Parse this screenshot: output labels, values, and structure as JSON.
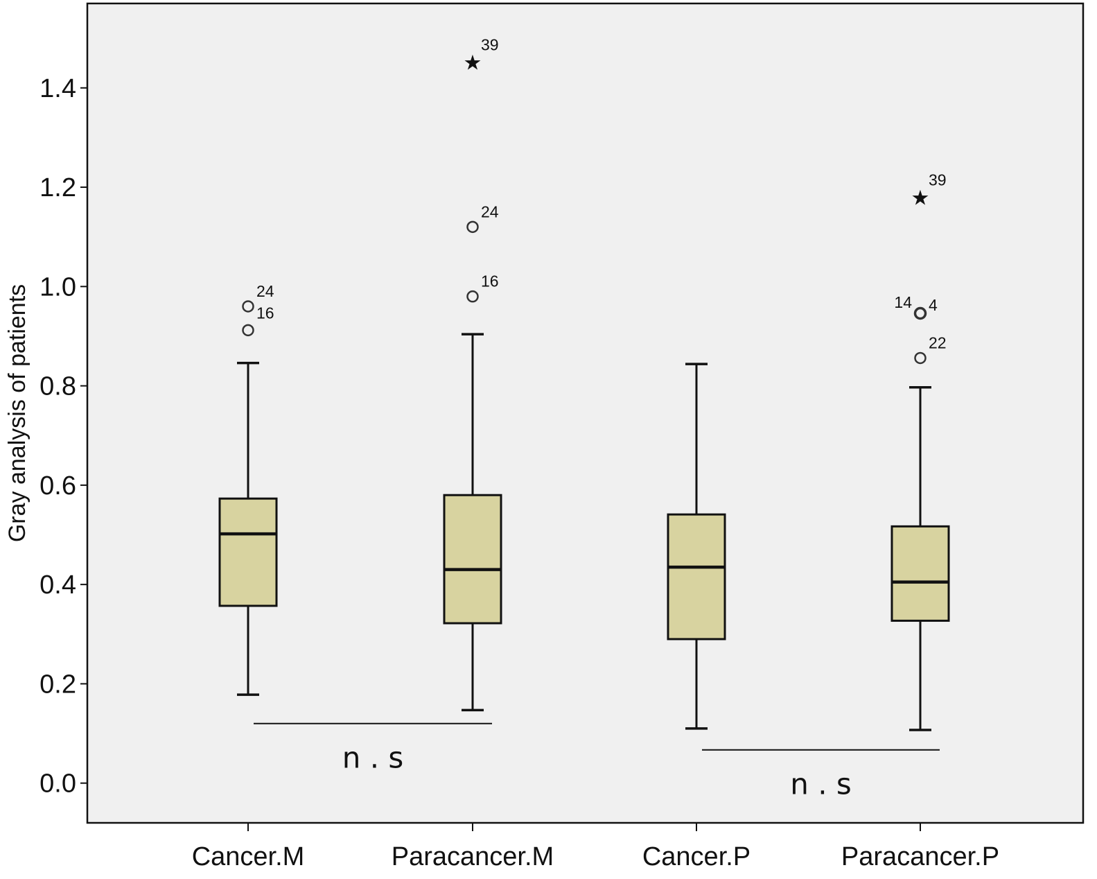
{
  "colors": {
    "plot_background": "#f0f0f0",
    "box_fill": "#d8d3a0",
    "stroke": "#111111",
    "outlier_stroke": "#333333"
  },
  "chart_data": {
    "type": "boxplot",
    "title": "",
    "xlabel": "",
    "ylabel": "Gray analysis of patients",
    "ylim": [
      -0.08,
      1.57
    ],
    "yticks": [
      0.0,
      0.2,
      0.4,
      0.6,
      0.8,
      1.0,
      1.2,
      1.4
    ],
    "ytick_labels": [
      "0.0",
      "0.2",
      "0.4",
      "0.6",
      "0.8",
      "1.0",
      "1.2",
      "1.4"
    ],
    "grid": false,
    "categories": [
      "Cancer.M",
      "Paracancer.M",
      "Cancer.P",
      "Paracancer.P"
    ],
    "boxes": [
      {
        "category": "Cancer.M",
        "min": 0.178,
        "q1": 0.357,
        "median": 0.502,
        "q3": 0.573,
        "max": 0.846,
        "outliers": [
          {
            "value": 0.96,
            "marker": "circle",
            "label": "24"
          },
          {
            "value": 0.912,
            "marker": "circle",
            "label": "16"
          }
        ]
      },
      {
        "category": "Paracancer.M",
        "min": 0.147,
        "q1": 0.322,
        "median": 0.43,
        "q3": 0.58,
        "max": 0.904,
        "outliers": [
          {
            "value": 1.456,
            "marker": "star",
            "label": "39"
          },
          {
            "value": 1.12,
            "marker": "circle",
            "label": "24"
          },
          {
            "value": 0.98,
            "marker": "circle",
            "label": "16"
          }
        ]
      },
      {
        "category": "Cancer.P",
        "min": 0.11,
        "q1": 0.29,
        "median": 0.435,
        "q3": 0.541,
        "max": 0.844,
        "outliers": []
      },
      {
        "category": "Paracancer.P",
        "min": 0.107,
        "q1": 0.327,
        "median": 0.405,
        "q3": 0.517,
        "max": 0.797,
        "outliers": [
          {
            "value": 1.184,
            "marker": "star",
            "label": "39"
          },
          {
            "value": 0.946,
            "marker": "circle",
            "label": "14"
          },
          {
            "value": 0.946,
            "marker": "circle",
            "label": "4"
          },
          {
            "value": 0.856,
            "marker": "circle",
            "label": "22"
          }
        ]
      }
    ],
    "annotations": [
      {
        "text": "n . s",
        "from": "Cancer.M",
        "to": "Paracancer.M",
        "line_y": 0.12
      },
      {
        "text": "n . s",
        "from": "Cancer.P",
        "to": "Paracancer.P",
        "line_y": 0.067
      }
    ]
  }
}
